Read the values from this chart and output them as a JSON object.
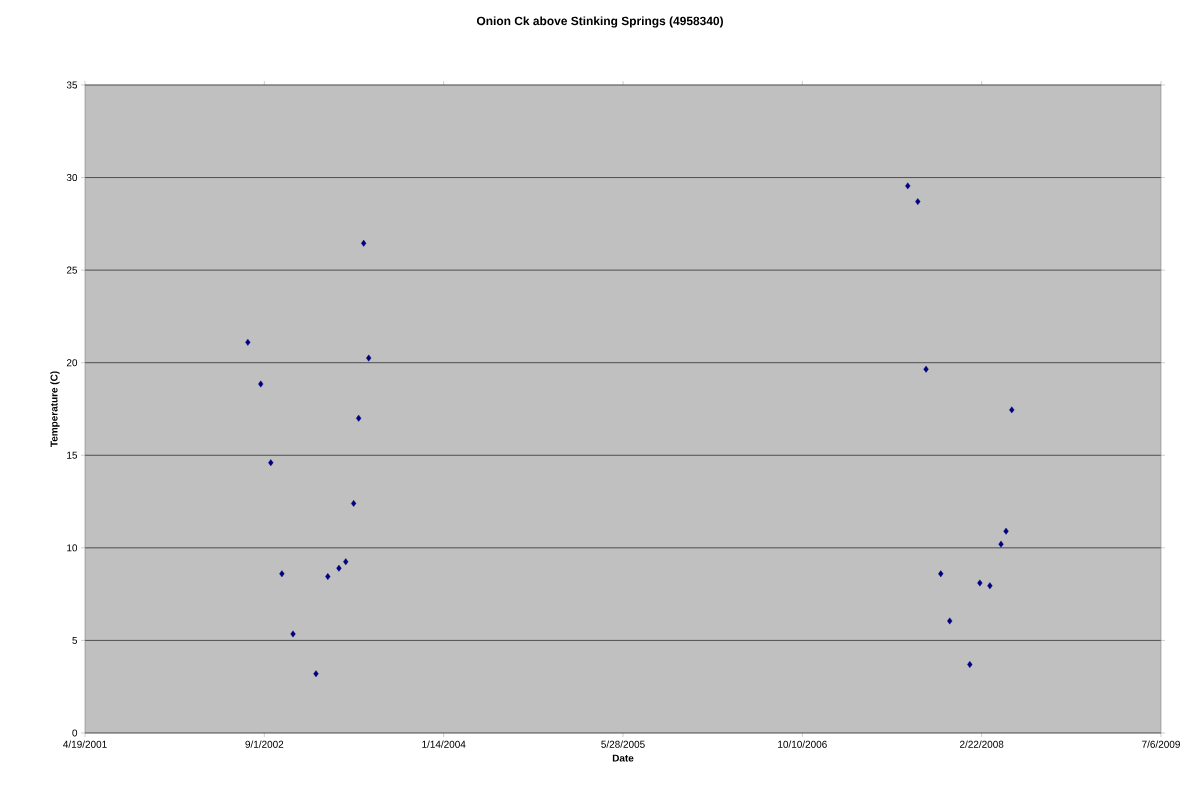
{
  "chart_data": {
    "type": "scatter",
    "title": "Onion Ck above Stinking Springs (4958340)",
    "xlabel": "Date",
    "ylabel": "Temperature (C)",
    "x": [
      "2002-07-17",
      "2002-08-22",
      "2002-09-19",
      "2002-10-20",
      "2002-11-20",
      "2003-01-23",
      "2003-02-25",
      "2003-03-28",
      "2003-04-16",
      "2003-05-08",
      "2003-05-22",
      "2003-06-05",
      "2003-06-19",
      "2007-07-31",
      "2007-08-28",
      "2007-09-20",
      "2007-10-31",
      "2007-11-25",
      "2008-01-20",
      "2008-02-17",
      "2008-03-16",
      "2008-04-16",
      "2008-04-30",
      "2008-05-16"
    ],
    "values": [
      21.1,
      18.85,
      14.6,
      8.6,
      5.35,
      3.2,
      8.45,
      8.9,
      9.25,
      12.4,
      17.0,
      26.45,
      20.25,
      29.55,
      28.7,
      19.65,
      8.6,
      6.05,
      3.7,
      8.1,
      7.95,
      10.2,
      10.9,
      17.45
    ],
    "color": "#000080",
    "marker": "diamond",
    "xlim": [
      "2001-04-19",
      "2009-07-06"
    ],
    "xticks": [
      {
        "value": "2001-04-19",
        "label": "4/19/2001"
      },
      {
        "value": "2002-09-01",
        "label": "9/1/2002"
      },
      {
        "value": "2004-01-14",
        "label": "1/14/2004"
      },
      {
        "value": "2005-05-28",
        "label": "5/28/2005"
      },
      {
        "value": "2006-10-10",
        "label": "10/10/2006"
      },
      {
        "value": "2008-02-22",
        "label": "2/22/2008"
      },
      {
        "value": "2009-07-06",
        "label": "7/6/2009"
      }
    ],
    "ylim": [
      0,
      35
    ],
    "yticks": [
      0,
      5,
      10,
      15,
      20,
      25,
      30,
      35
    ],
    "grid": "y"
  }
}
